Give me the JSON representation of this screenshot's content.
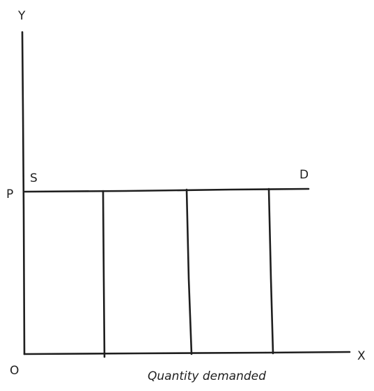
{
  "diagram": {
    "y_axis_label": "Y",
    "x_axis_label": "X",
    "origin_label": "O",
    "price_label": "P",
    "supply_label": "S",
    "demand_label": "D",
    "x_axis_title": "Quantity demanded"
  },
  "colors": {
    "ink": "#1e1e1e",
    "background": "#ffffff"
  }
}
